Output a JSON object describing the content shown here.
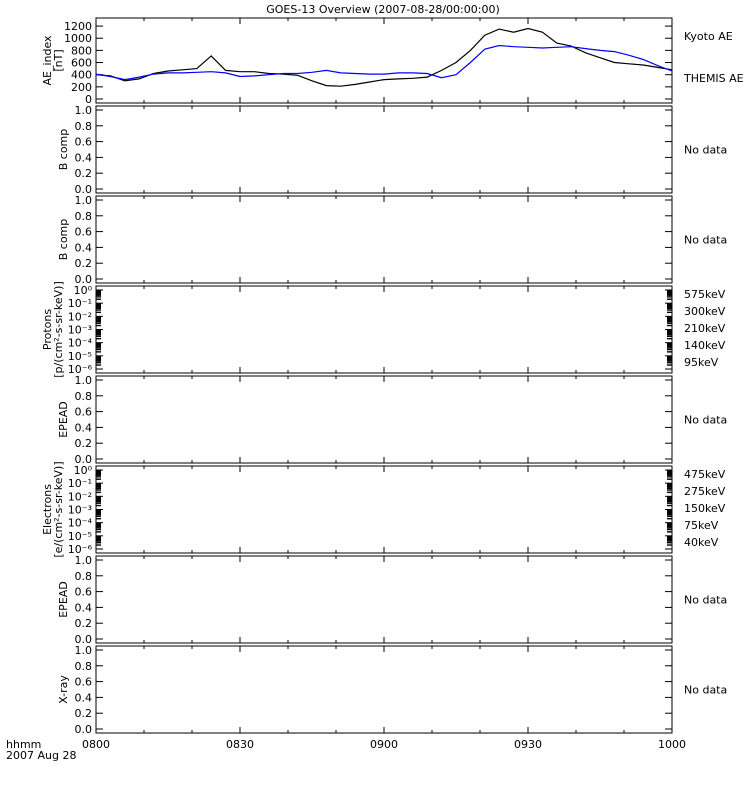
{
  "title": "GOES-13 Overview (2007-08-28/00:00:00)",
  "time_axis": {
    "ticks": [
      "0800",
      "0830",
      "0900",
      "0930",
      "1000"
    ],
    "corner_label_1": "hhmm",
    "corner_label_2": "2007 Aug 28"
  },
  "chart_data": [
    {
      "type": "line",
      "panel": "ae",
      "ylabel_1": "AE_index",
      "ylabel_2": "[nT]",
      "ylim": [
        0,
        1300
      ],
      "yticks": [
        "0",
        "200",
        "400",
        "600",
        "800",
        "1000",
        "1200"
      ],
      "x_units": "minutes after 0800 UT",
      "series": [
        {
          "name": "Kyoto AE",
          "color": "#000000",
          "x": [
            0,
            3,
            6,
            9,
            12,
            15,
            18,
            21,
            24,
            27,
            30,
            33,
            36,
            39,
            42,
            45,
            48,
            51,
            54,
            57,
            60,
            63,
            66,
            69,
            72,
            75,
            78,
            81,
            84,
            87,
            90,
            93,
            96,
            99,
            102,
            105,
            108,
            111,
            114,
            117,
            120
          ],
          "y": [
            400,
            380,
            300,
            330,
            420,
            460,
            480,
            500,
            710,
            470,
            450,
            450,
            420,
            410,
            390,
            300,
            220,
            210,
            240,
            280,
            320,
            330,
            340,
            360,
            470,
            600,
            800,
            1050,
            1150,
            1100,
            1160,
            1100,
            920,
            870,
            760,
            680,
            600,
            580,
            560,
            520,
            480
          ]
        },
        {
          "name": "THEMIS AE",
          "color": "#0000ff",
          "x": [
            0,
            3,
            6,
            9,
            12,
            15,
            18,
            21,
            24,
            27,
            30,
            33,
            36,
            39,
            42,
            45,
            48,
            51,
            54,
            57,
            60,
            63,
            66,
            69,
            72,
            75,
            78,
            81,
            84,
            87,
            90,
            93,
            96,
            99,
            102,
            105,
            108,
            111,
            114,
            117,
            120
          ],
          "y": [
            410,
            370,
            320,
            360,
            410,
            430,
            430,
            440,
            450,
            430,
            370,
            380,
            400,
            420,
            420,
            440,
            470,
            430,
            420,
            410,
            410,
            430,
            430,
            420,
            350,
            400,
            600,
            820,
            880,
            860,
            850,
            840,
            850,
            860,
            830,
            800,
            780,
            720,
            650,
            550,
            460
          ]
        }
      ]
    },
    {
      "type": "line",
      "panel": "bcomp1",
      "ylabel_1": "B comp",
      "ylim": [
        0,
        1
      ],
      "yticks": [
        "0.0",
        "0.2",
        "0.4",
        "0.6",
        "0.8",
        "1.0"
      ],
      "status": "No data"
    },
    {
      "type": "line",
      "panel": "bcomp2",
      "ylabel_1": "B comp",
      "ylim": [
        0,
        1
      ],
      "yticks": [
        "0.0",
        "0.2",
        "0.4",
        "0.6",
        "0.8",
        "1.0"
      ],
      "status": "No data"
    },
    {
      "type": "line",
      "panel": "protons",
      "scale": "log",
      "ylabel_1": "Protons",
      "ylabel_2": "[p/(cm²-s-sr-keV)]",
      "yticks": [
        "10⁻⁶",
        "10⁻⁵",
        "10⁻⁴",
        "10⁻³",
        "10⁻²",
        "10⁻¹",
        "10⁰"
      ],
      "legend": [
        {
          "label": "575keV",
          "color": "#8b0000"
        },
        {
          "label": "300keV",
          "color": "#ffa500"
        },
        {
          "label": "210keV",
          "color": "#00cc33"
        },
        {
          "label": "140keV",
          "color": "#0000ff"
        },
        {
          "label": "95keV",
          "color": "#000000"
        }
      ]
    },
    {
      "type": "line",
      "panel": "epead1",
      "ylabel_1": "EPEAD",
      "ylim": [
        0,
        1
      ],
      "yticks": [
        "0.0",
        "0.2",
        "0.4",
        "0.6",
        "0.8",
        "1.0"
      ],
      "status": "No data"
    },
    {
      "type": "line",
      "panel": "electrons",
      "scale": "log",
      "ylabel_1": "Electrons",
      "ylabel_2": "[e/(cm²-s-sr-keV)]",
      "yticks": [
        "10⁻⁶",
        "10⁻⁵",
        "10⁻⁴",
        "10⁻³",
        "10⁻²",
        "10⁻¹",
        "10⁰"
      ],
      "legend": [
        {
          "label": "475keV",
          "color": "#8b0000"
        },
        {
          "label": "275keV",
          "color": "#ffa500"
        },
        {
          "label": "150keV",
          "color": "#00cc33"
        },
        {
          "label": "75keV",
          "color": "#0000ff"
        },
        {
          "label": "40keV",
          "color": "#000000"
        }
      ]
    },
    {
      "type": "line",
      "panel": "epead2",
      "ylabel_1": "EPEAD",
      "ylim": [
        0,
        1
      ],
      "yticks": [
        "0.0",
        "0.2",
        "0.4",
        "0.6",
        "0.8",
        "1.0"
      ],
      "status": "No data"
    },
    {
      "type": "line",
      "panel": "xray",
      "ylabel_1": "X-ray",
      "ylim": [
        0,
        1
      ],
      "yticks": [
        "0.0",
        "0.2",
        "0.4",
        "0.6",
        "0.8",
        "1.0"
      ],
      "status": "No data"
    }
  ]
}
